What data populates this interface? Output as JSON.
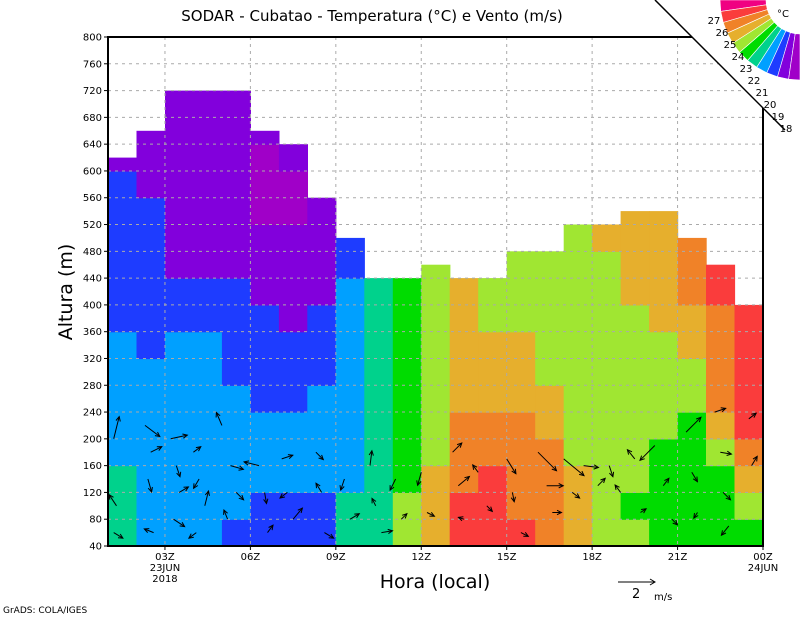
{
  "chart_data": {
    "type": "heatmap",
    "title": "SODAR - Cubatao - Temperatura (°C) e Vento (m/s)",
    "xlabel": "Hora (local)",
    "ylabel": "Altura (m)",
    "credit": "GrADS: COLA/IGES",
    "x_unit": "hour UTC since 00Z 23JUN2018",
    "xlim": [
      1,
      24
    ],
    "ylim": [
      40,
      800
    ],
    "grid": true,
    "x_ticks": [
      {
        "hour": 3,
        "label": "03Z",
        "sub": [
          "23JUN",
          "2018"
        ]
      },
      {
        "hour": 6,
        "label": "06Z",
        "sub": []
      },
      {
        "hour": 9,
        "label": "09Z",
        "sub": []
      },
      {
        "hour": 12,
        "label": "12Z",
        "sub": []
      },
      {
        "hour": 15,
        "label": "15Z",
        "sub": []
      },
      {
        "hour": 18,
        "label": "18Z",
        "sub": []
      },
      {
        "hour": 21,
        "label": "21Z",
        "sub": []
      },
      {
        "hour": 24,
        "label": "00Z",
        "sub": [
          "24JUN"
        ]
      }
    ],
    "y_ticks": [
      40,
      80,
      120,
      160,
      200,
      240,
      280,
      320,
      360,
      400,
      440,
      480,
      520,
      560,
      600,
      640,
      680,
      720,
      760,
      800
    ],
    "colorbar": {
      "unit": "°C",
      "levels": [
        18,
        19,
        20,
        21,
        22,
        23,
        24,
        25,
        26,
        27
      ],
      "colors": [
        "#a000c8",
        "#8200dc",
        "#1e3cff",
        "#00a0ff",
        "#00d28c",
        "#00dc00",
        "#a0e632",
        "#e6af2d",
        "#f08228",
        "#fa3c3c",
        "#f00082"
      ]
    },
    "temperature": {
      "row_base": 40,
      "row_step": 40,
      "columns": [
        {
          "hour": 1,
          "top": 620,
          "values": [
            21.5,
            21.5,
            21.5,
            20.5,
            20.5,
            20.5,
            20.5,
            20.5,
            19.5,
            19.5,
            19.5,
            19.5,
            19.5,
            19.5,
            18.5
          ]
        },
        {
          "hour": 2,
          "top": 660,
          "values": [
            20.5,
            20.5,
            20.5,
            20.5,
            20.5,
            20.5,
            20.5,
            19.5,
            19.5,
            19.5,
            19.5,
            19.5,
            19.5,
            18.5,
            18.5,
            18.5
          ]
        },
        {
          "hour": 3,
          "top": 720,
          "values": [
            20.5,
            20.5,
            20.5,
            20.5,
            20.5,
            20.5,
            20.5,
            20.5,
            19.5,
            19.5,
            18.5,
            18.5,
            18.5,
            18.5,
            18.5,
            18.5,
            18.5
          ]
        },
        {
          "hour": 4,
          "top": 720,
          "values": [
            20.5,
            20.5,
            20.5,
            20.5,
            20.5,
            20.5,
            20.5,
            20.5,
            19.5,
            19.5,
            18.5,
            18.5,
            18.5,
            18.5,
            18.5,
            18.5,
            18.5
          ]
        },
        {
          "hour": 5,
          "top": 720,
          "values": [
            19.5,
            20.5,
            20.5,
            20.5,
            20.5,
            20.5,
            19.5,
            19.5,
            19.5,
            19.5,
            18.5,
            18.5,
            18.5,
            18.5,
            18.5,
            18.5,
            18.5
          ]
        },
        {
          "hour": 6,
          "top": 660,
          "values": [
            19.5,
            19.5,
            20.5,
            20.5,
            20.5,
            19.5,
            19.5,
            19.5,
            19.5,
            18.5,
            18.5,
            18.5,
            17.5,
            17.5,
            17.5,
            18.5
          ]
        },
        {
          "hour": 7,
          "top": 640,
          "values": [
            19.5,
            19.5,
            20.5,
            20.5,
            20.5,
            19.5,
            19.5,
            19.5,
            18.5,
            18.5,
            18.5,
            18.5,
            17.5,
            17.5,
            18.5
          ]
        },
        {
          "hour": 8,
          "top": 560,
          "values": [
            19.5,
            19.5,
            20.5,
            20.5,
            20.5,
            20.5,
            19.5,
            19.5,
            19.5,
            18.5,
            18.5,
            18.5,
            18.5
          ]
        },
        {
          "hour": 9,
          "top": 500,
          "values": [
            21.5,
            21.5,
            20.5,
            20.5,
            20.5,
            20.5,
            20.5,
            20.5,
            20.5,
            20.5,
            19.5,
            19.5
          ]
        },
        {
          "hour": 10,
          "top": 440,
          "values": [
            21.5,
            21.5,
            21.5,
            21.5,
            21.5,
            21.5,
            21.5,
            21.5,
            21.5,
            21.5
          ]
        },
        {
          "hour": 11,
          "top": 440,
          "values": [
            23.5,
            23.5,
            22.5,
            22.5,
            22.5,
            22.5,
            22.5,
            22.5,
            22.5,
            22.5
          ]
        },
        {
          "hour": 12,
          "top": 460,
          "values": [
            24.5,
            24.5,
            24.5,
            23.5,
            23.5,
            23.5,
            23.5,
            23.5,
            23.5,
            23.5,
            23.5
          ]
        },
        {
          "hour": 13,
          "top": 440,
          "values": [
            26.5,
            26.5,
            25.5,
            25.5,
            25.5,
            24.5,
            24.5,
            24.5,
            24.5,
            24.5
          ]
        },
        {
          "hour": 14,
          "top": 440,
          "values": [
            26.5,
            26.5,
            26.5,
            25.5,
            25.5,
            24.5,
            24.5,
            24.5,
            23.5,
            23.5
          ]
        },
        {
          "hour": 15,
          "top": 480,
          "values": [
            26.5,
            25.5,
            25.5,
            25.5,
            25.5,
            24.5,
            24.5,
            24.5,
            23.5,
            23.5,
            23.5
          ]
        },
        {
          "hour": 16,
          "top": 480,
          "values": [
            25.5,
            25.5,
            25.5,
            25.5,
            24.5,
            24.5,
            23.5,
            23.5,
            23.5,
            23.5,
            23.5
          ]
        },
        {
          "hour": 17,
          "top": 520,
          "values": [
            24.5,
            24.5,
            24.5,
            23.5,
            23.5,
            23.5,
            23.5,
            23.5,
            23.5,
            23.5,
            23.5,
            23.5
          ]
        },
        {
          "hour": 18,
          "top": 520,
          "values": [
            23.5,
            23.5,
            23.5,
            23.5,
            23.5,
            23.5,
            23.5,
            23.5,
            23.5,
            23.5,
            23.5,
            24.5
          ]
        },
        {
          "hour": 19,
          "top": 540,
          "values": [
            23.5,
            22.5,
            23.5,
            23.5,
            23.5,
            23.5,
            23.5,
            23.5,
            23.5,
            24.5,
            24.5,
            24.5,
            24.5
          ]
        },
        {
          "hour": 20,
          "top": 540,
          "values": [
            22.5,
            22.5,
            22.5,
            22.5,
            23.5,
            23.5,
            23.5,
            23.5,
            24.5,
            24.5,
            24.5,
            24.5,
            24.5
          ]
        },
        {
          "hour": 21,
          "top": 500,
          "values": [
            22.5,
            22.5,
            22.5,
            22.5,
            22.5,
            23.5,
            23.5,
            24.5,
            24.5,
            25.5,
            25.5,
            25.5
          ]
        },
        {
          "hour": 22,
          "top": 460,
          "values": [
            22.5,
            22.5,
            22.5,
            23.5,
            24.5,
            25.5,
            25.5,
            25.5,
            25.5,
            26.5,
            26.5
          ]
        },
        {
          "hour": 23,
          "top": 400,
          "values": [
            22.5,
            23.5,
            24.5,
            25.5,
            26.5,
            26.5,
            26.5,
            26.5,
            26.5
          ]
        }
      ]
    },
    "wind": {
      "reference": {
        "speed": 2,
        "label": "2",
        "unit": "m/s"
      },
      "vectors": [
        [
          1.2,
          200,
          0.3,
          1.2
        ],
        [
          1.3,
          100,
          -0.4,
          0.6
        ],
        [
          1.2,
          60,
          0.5,
          -0.3
        ],
        [
          2.3,
          220,
          0.8,
          -0.6
        ],
        [
          2.5,
          180,
          0.6,
          0.3
        ],
        [
          2.4,
          140,
          0.2,
          -0.7
        ],
        [
          2.6,
          60,
          -0.5,
          0.2
        ],
        [
          3.2,
          200,
          0.9,
          0.2
        ],
        [
          3.4,
          160,
          0.2,
          -0.6
        ],
        [
          3.5,
          120,
          0.5,
          0.3
        ],
        [
          3.3,
          80,
          0.6,
          -0.4
        ],
        [
          4.0,
          180,
          0.4,
          0.3
        ],
        [
          4.2,
          140,
          -0.3,
          -0.5
        ],
        [
          4.4,
          100,
          0.2,
          0.8
        ],
        [
          4.1,
          60,
          -0.4,
          -0.3
        ],
        [
          5.0,
          220,
          -0.3,
          0.7
        ],
        [
          5.3,
          160,
          0.7,
          -0.2
        ],
        [
          5.5,
          120,
          0.4,
          -0.4
        ],
        [
          5.2,
          80,
          -0.2,
          0.5
        ],
        [
          6.3,
          160,
          -0.8,
          0.2
        ],
        [
          6.5,
          120,
          0.1,
          -0.6
        ],
        [
          6.6,
          60,
          0.3,
          0.4
        ],
        [
          7.1,
          170,
          0.6,
          0.2
        ],
        [
          7.3,
          120,
          -0.4,
          -0.3
        ],
        [
          7.5,
          80,
          0.5,
          0.6
        ],
        [
          8.3,
          180,
          0.4,
          -0.4
        ],
        [
          8.5,
          120,
          -0.3,
          0.5
        ],
        [
          8.6,
          60,
          0.5,
          -0.3
        ],
        [
          9.3,
          140,
          -0.2,
          -0.6
        ],
        [
          9.5,
          80,
          0.5,
          0.3
        ],
        [
          10.2,
          160,
          0.1,
          0.8
        ],
        [
          10.4,
          100,
          -0.2,
          0.4
        ],
        [
          10.6,
          60,
          0.6,
          0.1
        ],
        [
          11.1,
          140,
          -0.3,
          -0.6
        ],
        [
          11.3,
          80,
          0.3,
          0.3
        ],
        [
          12.0,
          150,
          -0.2,
          -0.7
        ],
        [
          12.2,
          90,
          0.4,
          -0.2
        ],
        [
          13.1,
          180,
          0.5,
          0.5
        ],
        [
          13.3,
          130,
          0.6,
          0.5
        ],
        [
          13.5,
          80,
          -0.3,
          0.1
        ],
        [
          14.0,
          150,
          -0.3,
          0.4
        ],
        [
          14.3,
          100,
          0.3,
          -0.3
        ],
        [
          15.0,
          170,
          0.5,
          -0.8
        ],
        [
          15.2,
          120,
          0.1,
          -0.5
        ],
        [
          15.5,
          60,
          0.4,
          -0.2
        ],
        [
          16.1,
          180,
          1.0,
          -1.0
        ],
        [
          16.4,
          130,
          0.9,
          0.0
        ],
        [
          16.6,
          90,
          0.5,
          0.0
        ],
        [
          17.0,
          170,
          1.1,
          -0.9
        ],
        [
          17.3,
          120,
          0.4,
          -0.3
        ],
        [
          17.7,
          160,
          0.8,
          -0.1
        ],
        [
          18.2,
          130,
          0.4,
          0.4
        ],
        [
          18.6,
          160,
          0.2,
          -0.6
        ],
        [
          19.0,
          120,
          -0.3,
          0.4
        ],
        [
          19.5,
          170,
          -0.4,
          0.5
        ],
        [
          19.7,
          90,
          0.3,
          0.2
        ],
        [
          20.2,
          190,
          -0.8,
          -0.8
        ],
        [
          20.5,
          130,
          0.3,
          0.4
        ],
        [
          20.8,
          80,
          0.3,
          -0.3
        ],
        [
          21.3,
          210,
          0.8,
          0.8
        ],
        [
          21.5,
          150,
          0.3,
          -0.5
        ],
        [
          21.7,
          90,
          -0.2,
          -0.3
        ],
        [
          22.3,
          240,
          0.6,
          0.2
        ],
        [
          22.5,
          180,
          0.6,
          -0.1
        ],
        [
          22.6,
          120,
          0.4,
          -0.4
        ],
        [
          22.8,
          70,
          -0.4,
          -0.5
        ],
        [
          23.5,
          230,
          0.4,
          0.3
        ],
        [
          23.6,
          160,
          0.3,
          0.5
        ]
      ]
    }
  }
}
